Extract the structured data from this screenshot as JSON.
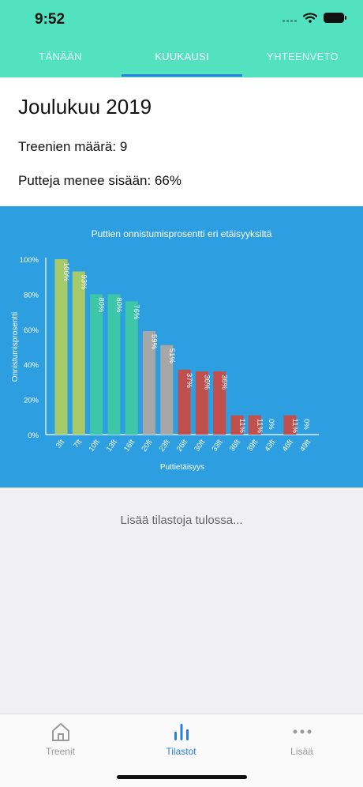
{
  "status_bar": {
    "time": "9:52"
  },
  "tabs": [
    {
      "label": "TÄNÄÄN",
      "active": false
    },
    {
      "label": "KUUKAUSI",
      "active": true
    },
    {
      "label": "YHTEENVETO",
      "active": false
    }
  ],
  "summary": {
    "month": "Joulukuu 2019",
    "sessions": "Treenien määrä: 9",
    "putts_in": "Putteja menee sisään: 66%"
  },
  "chart_data": {
    "type": "bar",
    "title": "Puttien onnistumisprosentti eri etäisyyksiltä",
    "xlabel": "Puttietäisyys",
    "ylabel": "Onnistumisprosentti",
    "ylim": [
      0,
      100
    ],
    "yticks": [
      "0%",
      "20%",
      "40%",
      "60%",
      "80%",
      "100%"
    ],
    "categories": [
      "3ft",
      "7ft",
      "10ft",
      "13ft",
      "16ft",
      "20ft",
      "23ft",
      "26ft",
      "30ft",
      "33ft",
      "36ft",
      "39ft",
      "43ft",
      "46ft",
      "49ft"
    ],
    "values": [
      100,
      93,
      80,
      80,
      76,
      59,
      51,
      37,
      36,
      36,
      11,
      11,
      0,
      11,
      0
    ],
    "value_labels": [
      "100%",
      "93%",
      "80%",
      "80%",
      "76%",
      "59%",
      "51%",
      "37%",
      "36%",
      "36%",
      "11%",
      "11%",
      "0%",
      "11%",
      "0%"
    ],
    "colors": [
      "#a6c96a",
      "#a6c96a",
      "#3ec6a8",
      "#3ec6a8",
      "#3ec6a8",
      "#a7a7a7",
      "#a7a7a7",
      "#c0504d",
      "#c0504d",
      "#c0504d",
      "#c0504d",
      "#c0504d",
      "#c0504d",
      "#c0504d",
      "#c0504d"
    ],
    "grid": false,
    "legend": "none"
  },
  "more_stats": "Lisää tilastoja tulossa...",
  "tabbar": [
    {
      "label": "Treenit",
      "icon": "home-icon",
      "active": false
    },
    {
      "label": "Tilastot",
      "icon": "bar-chart-icon",
      "active": true
    },
    {
      "label": "Lisää",
      "icon": "more-dots-icon",
      "active": false
    }
  ],
  "colors": {
    "header": "#53e2c0",
    "accent": "#2a7de1",
    "chart_bg": "#2d9ee0"
  }
}
